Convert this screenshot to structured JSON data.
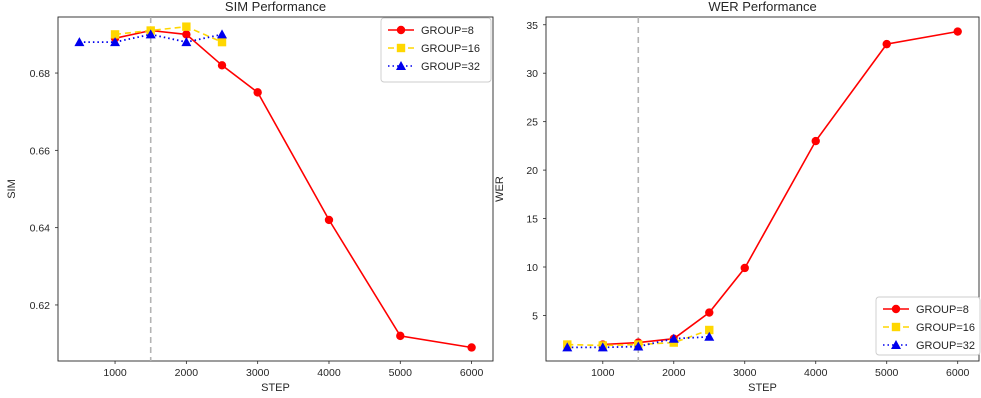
{
  "chart_data": [
    {
      "type": "line",
      "title": "SIM Performance",
      "xlabel": "STEP",
      "ylabel": "SIM",
      "xlim": [
        200,
        6300
      ],
      "ylim": [
        0.6055,
        0.6945
      ],
      "xticks": [
        1000,
        2000,
        3000,
        4000,
        5000,
        6000
      ],
      "yticks": [
        0.62,
        0.64,
        0.66,
        0.68
      ],
      "ytick_labels": [
        "0.62",
        "0.64",
        "0.66",
        "0.68"
      ],
      "vline_x": 1500,
      "legend_position": "top-right",
      "series": [
        {
          "name": "GROUP=8",
          "color": "#ff0000",
          "marker": "circle",
          "linestyle": "solid",
          "x": [
            1000,
            1500,
            2000,
            2500,
            3000,
            4000,
            5000,
            6000
          ],
          "y": [
            0.689,
            0.691,
            0.69,
            0.682,
            0.675,
            0.642,
            0.612,
            0.609
          ]
        },
        {
          "name": "GROUP=16",
          "color": "#ffd700",
          "marker": "square",
          "linestyle": "dashed",
          "x": [
            1000,
            1500,
            2000,
            2500
          ],
          "y": [
            0.69,
            0.691,
            0.692,
            0.688
          ]
        },
        {
          "name": "GROUP=32",
          "color": "#0000ee",
          "marker": "triangle",
          "linestyle": "dotted",
          "x": [
            500,
            1000,
            1500,
            2000,
            2500
          ],
          "y": [
            0.688,
            0.688,
            0.69,
            0.688,
            0.69
          ]
        }
      ]
    },
    {
      "type": "line",
      "title": "WER Performance",
      "xlabel": "STEP",
      "ylabel": "WER",
      "xlim": [
        200,
        6300
      ],
      "ylim": [
        0.3,
        35.8
      ],
      "xticks": [
        1000,
        2000,
        3000,
        4000,
        5000,
        6000
      ],
      "yticks": [
        5,
        10,
        15,
        20,
        25,
        30,
        35
      ],
      "ytick_labels": [
        "5",
        "10",
        "15",
        "20",
        "25",
        "30",
        "35"
      ],
      "vline_x": 1500,
      "legend_position": "bottom-right",
      "series": [
        {
          "name": "GROUP=8",
          "color": "#ff0000",
          "marker": "circle",
          "linestyle": "solid",
          "x": [
            1000,
            1500,
            2000,
            2500,
            3000,
            4000,
            5000,
            6000
          ],
          "y": [
            2.0,
            2.2,
            2.6,
            5.3,
            9.9,
            23.0,
            33.0,
            34.3
          ]
        },
        {
          "name": "GROUP=16",
          "color": "#ffd700",
          "marker": "square",
          "linestyle": "dashed",
          "x": [
            500,
            1000,
            1500,
            2000,
            2500
          ],
          "y": [
            2.0,
            1.9,
            2.0,
            2.2,
            3.5
          ]
        },
        {
          "name": "GROUP=32",
          "color": "#0000ee",
          "marker": "triangle",
          "linestyle": "dotted",
          "x": [
            500,
            1000,
            1500,
            2000,
            2500
          ],
          "y": [
            1.7,
            1.7,
            1.8,
            2.6,
            2.8
          ]
        }
      ]
    }
  ]
}
